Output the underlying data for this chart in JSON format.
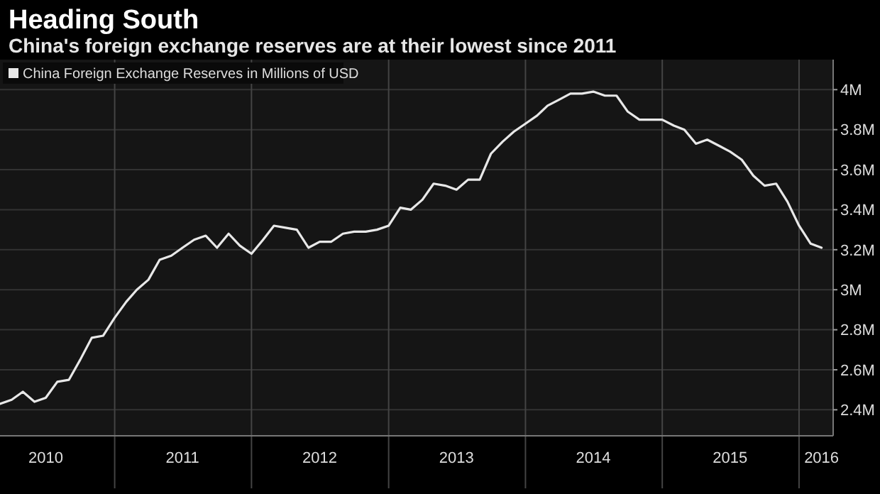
{
  "chart_data": {
    "type": "line",
    "title": "Heading South",
    "subtitle": "China's foreign exchange reserves are at their lowest since 2011",
    "x": [
      "2010-03",
      "2010-04",
      "2010-05",
      "2010-06",
      "2010-07",
      "2010-08",
      "2010-09",
      "2010-10",
      "2010-11",
      "2010-12",
      "2011-01",
      "2011-02",
      "2011-03",
      "2011-04",
      "2011-05",
      "2011-06",
      "2011-07",
      "2011-08",
      "2011-09",
      "2011-10",
      "2011-11",
      "2011-12",
      "2012-01",
      "2012-02",
      "2012-03",
      "2012-04",
      "2012-05",
      "2012-06",
      "2012-07",
      "2012-08",
      "2012-09",
      "2012-10",
      "2012-11",
      "2012-12",
      "2013-01",
      "2013-02",
      "2013-03",
      "2013-04",
      "2013-05",
      "2013-06",
      "2013-07",
      "2013-08",
      "2013-09",
      "2013-10",
      "2013-11",
      "2013-12",
      "2014-01",
      "2014-02",
      "2014-03",
      "2014-04",
      "2014-05",
      "2014-06",
      "2014-07",
      "2014-08",
      "2014-09",
      "2014-10",
      "2014-11",
      "2014-12",
      "2015-01",
      "2015-02",
      "2015-03",
      "2015-04",
      "2015-05",
      "2015-06",
      "2015-07",
      "2015-08",
      "2015-09",
      "2015-10",
      "2015-11",
      "2015-12",
      "2016-01",
      "2016-02",
      "2016-03"
    ],
    "series": [
      {
        "name": "China Foreign Exchange Reserves in Millions of USD",
        "color": "#e8e8e8",
        "values": [
          2430000,
          2450000,
          2490000,
          2440000,
          2460000,
          2540000,
          2550000,
          2650000,
          2760000,
          2770000,
          2860000,
          2940000,
          3000000,
          3050000,
          3150000,
          3170000,
          3210000,
          3250000,
          3270000,
          3210000,
          3280000,
          3220000,
          3180000,
          3250000,
          3320000,
          3310000,
          3300000,
          3210000,
          3240000,
          3240000,
          3280000,
          3290000,
          3290000,
          3300000,
          3320000,
          3410000,
          3400000,
          3450000,
          3530000,
          3520000,
          3500000,
          3550000,
          3550000,
          3680000,
          3740000,
          3790000,
          3830000,
          3870000,
          3920000,
          3950000,
          3980000,
          3980000,
          3990000,
          3970000,
          3970000,
          3890000,
          3850000,
          3850000,
          3850000,
          3820000,
          3800000,
          3730000,
          3750000,
          3720000,
          3690000,
          3650000,
          3570000,
          3520000,
          3530000,
          3440000,
          3320000,
          3230000,
          3210000
        ]
      }
    ],
    "xlim": [
      "2010-03",
      "2016-04"
    ],
    "xticks": [
      {
        "value": "2010-07",
        "label": "2010"
      },
      {
        "value": "2011-01",
        "label": null
      },
      {
        "value": "2011-07",
        "label": "2011"
      },
      {
        "value": "2012-01",
        "label": null
      },
      {
        "value": "2012-07",
        "label": "2012"
      },
      {
        "value": "2013-01",
        "label": null
      },
      {
        "value": "2013-07",
        "label": "2013"
      },
      {
        "value": "2014-01",
        "label": null
      },
      {
        "value": "2014-07",
        "label": "2014"
      },
      {
        "value": "2015-01",
        "label": null
      },
      {
        "value": "2015-07",
        "label": "2015"
      },
      {
        "value": "2016-01",
        "label": null
      },
      {
        "value": "2016-03",
        "label": "2016"
      }
    ],
    "ylim": [
      2270000,
      4150000
    ],
    "yticks": [
      {
        "value": 2400000,
        "label": "2.4M"
      },
      {
        "value": 2600000,
        "label": "2.6M"
      },
      {
        "value": 2800000,
        "label": "2.8M"
      },
      {
        "value": 3000000,
        "label": "3M"
      },
      {
        "value": 3200000,
        "label": "3.2M"
      },
      {
        "value": 3400000,
        "label": "3.4M"
      },
      {
        "value": 3600000,
        "label": "3.6M"
      },
      {
        "value": 3800000,
        "label": "3.8M"
      },
      {
        "value": 4000000,
        "label": "4M"
      }
    ],
    "grid": true,
    "legend": "top left"
  }
}
